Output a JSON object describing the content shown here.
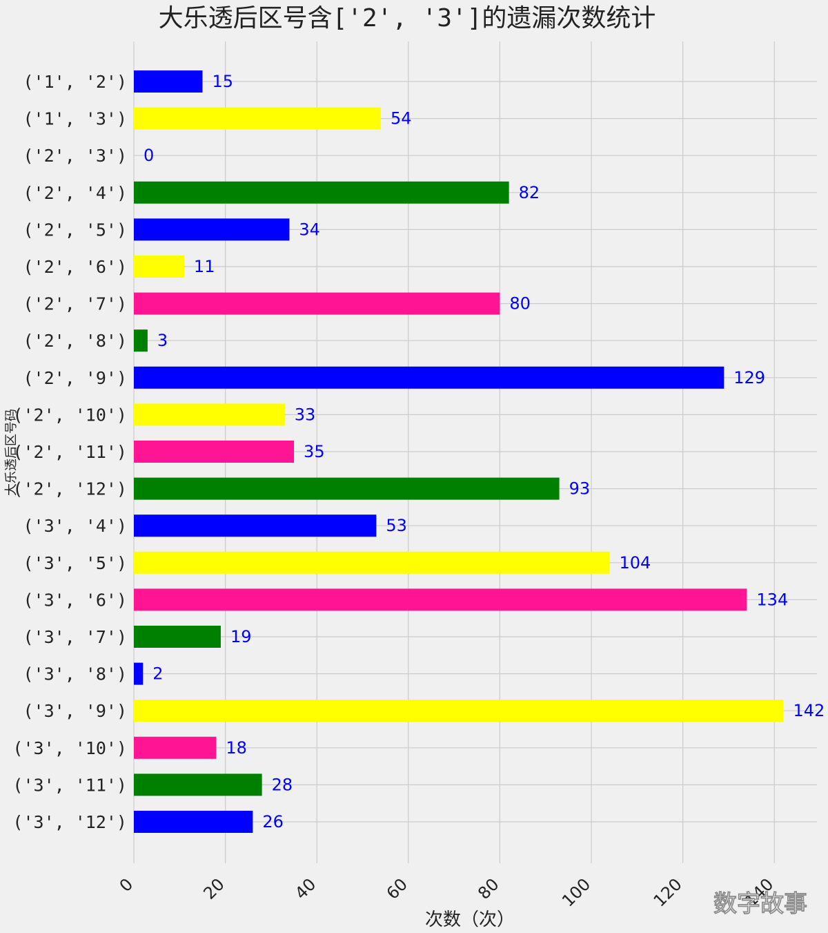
{
  "chart_data": {
    "type": "bar",
    "orientation": "horizontal",
    "title": "大乐透后区号含['2', '3']的遗漏次数统计",
    "xlabel": "次数（次）",
    "ylabel": "大乐透后区号码",
    "xlim": [
      0,
      148
    ],
    "xticks": [
      "0",
      "20",
      "40",
      "60",
      "80",
      "100",
      "120",
      "140"
    ],
    "grid": true,
    "categories": [
      "('1', '2')",
      "('1', '3')",
      "('2', '3')",
      "('2', '4')",
      "('2', '5')",
      "('2', '6')",
      "('2', '7')",
      "('2', '8')",
      "('2', '9')",
      "('2', '10')",
      "('2', '11')",
      "('2', '12')",
      "('3', '4')",
      "('3', '5')",
      "('3', '6')",
      "('3', '7')",
      "('3', '8')",
      "('3', '9')",
      "('3', '10')",
      "('3', '11')",
      "('3', '12')"
    ],
    "values": [
      15,
      54,
      0,
      82,
      34,
      11,
      80,
      3,
      129,
      33,
      35,
      93,
      53,
      104,
      134,
      19,
      2,
      142,
      18,
      28,
      26
    ],
    "colors": [
      "#0000ff",
      "#ffff00",
      "#ff1493",
      "#008000"
    ],
    "label_color": "#0000ff"
  },
  "watermark": "数字故事"
}
